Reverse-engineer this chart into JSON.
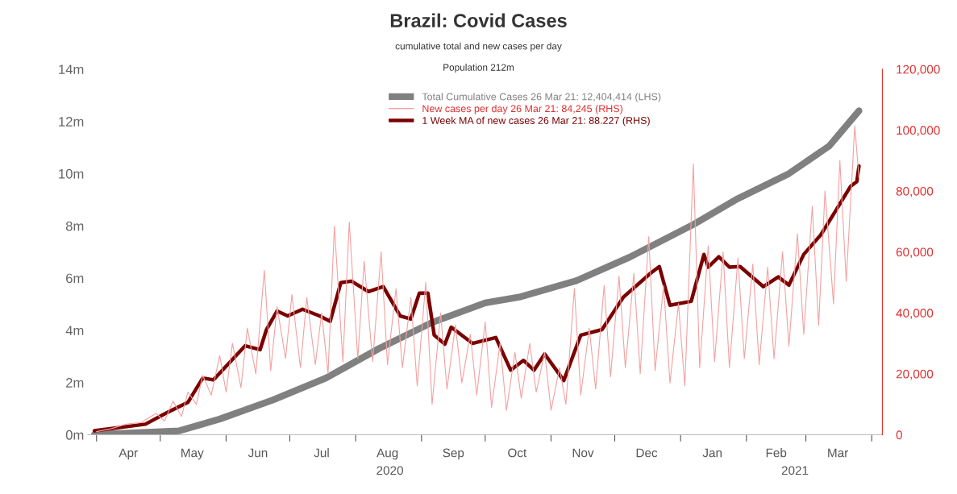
{
  "chart_data": {
    "type": "line",
    "title": "Brazil: Covid Cases",
    "subtitle": "cumulative total and new cases per day",
    "annotations": [
      "Population 212m",
      "2020",
      "2021"
    ],
    "xlim": [
      "2020-03-28",
      "2021-04-06"
    ],
    "xticks": [
      {
        "value": "2020-04-01",
        "label": null
      },
      {
        "value": "2020-04-16",
        "label": "Apr"
      },
      {
        "value": "2020-05-01",
        "label": null
      },
      {
        "value": "2020-05-16",
        "label": "May"
      },
      {
        "value": "2020-06-01",
        "label": null
      },
      {
        "value": "2020-06-16",
        "label": "Jun"
      },
      {
        "value": "2020-07-01",
        "label": null
      },
      {
        "value": "2020-07-16",
        "label": "Jul"
      },
      {
        "value": "2020-08-01",
        "label": null
      },
      {
        "value": "2020-08-16",
        "label": "Aug"
      },
      {
        "value": "2020-09-01",
        "label": null
      },
      {
        "value": "2020-09-16",
        "label": "Sep"
      },
      {
        "value": "2020-10-01",
        "label": null
      },
      {
        "value": "2020-10-16",
        "label": "Oct"
      },
      {
        "value": "2020-11-01",
        "label": null
      },
      {
        "value": "2020-11-16",
        "label": "Nov"
      },
      {
        "value": "2020-12-01",
        "label": null
      },
      {
        "value": "2020-12-16",
        "label": "Dec"
      },
      {
        "value": "2021-01-01",
        "label": null
      },
      {
        "value": "2021-01-16",
        "label": "Jan"
      },
      {
        "value": "2021-02-01",
        "label": null
      },
      {
        "value": "2021-02-15",
        "label": "Feb"
      },
      {
        "value": "2021-03-01",
        "label": null
      },
      {
        "value": "2021-03-16",
        "label": "Mar"
      },
      {
        "value": "2021-04-01",
        "label": null
      }
    ],
    "ylim": [
      0,
      14000000
    ],
    "yticks": [
      {
        "value": 0,
        "label": "0m"
      },
      {
        "value": 2000000,
        "label": "2m"
      },
      {
        "value": 4000000,
        "label": "4m"
      },
      {
        "value": 6000000,
        "label": "6m"
      },
      {
        "value": 8000000,
        "label": "8m"
      },
      {
        "value": 10000000,
        "label": "10m"
      },
      {
        "value": 12000000,
        "label": "12m"
      },
      {
        "value": 14000000,
        "label": "14m"
      }
    ],
    "y2lim": [
      0,
      120000
    ],
    "y2ticks": [
      0,
      {
        "value": 20000,
        "label": "20,000"
      },
      {
        "value": 40000,
        "label": "40,000"
      },
      {
        "value": 60000,
        "label": "60,000"
      },
      {
        "value": 80000,
        "label": "80,000"
      },
      {
        "value": 100000,
        "label": "100,000"
      },
      {
        "value": 120000,
        "label": "120,000"
      }
    ],
    "grid": false,
    "legend": "top",
    "marker": "none",
    "line_style": "solid",
    "series": [
      {
        "name": "Total Cumulative Cases 26 Mar 21: 12,404,414 (LHS)",
        "color": "#808080",
        "x": [
          "2020-03-31",
          "2020-05-10",
          "2020-05-29",
          "2020-06-23",
          "2020-07-18",
          "2020-08-12",
          "2020-09-06",
          "2020-10-01",
          "2020-10-17",
          "2020-11-13",
          "2020-12-08",
          "2021-01-07",
          "2021-01-27",
          "2021-02-21",
          "2021-03-12",
          "2021-03-26"
        ],
        "values": [
          6000,
          150000,
          600000,
          1330000,
          2170000,
          3300000,
          4300000,
          5050000,
          5270000,
          5900000,
          6800000,
          8050000,
          9000000,
          10000000,
          11060000,
          12404414
        ]
      },
      {
        "name": "New cases per day 26 Mar 21: 84,245 (RHS)",
        "color": "#f4a0a0",
        "axis": "y2",
        "x": [
          "2020-04-01",
          "2020-04-08",
          "2020-04-15",
          "2020-04-22",
          "2020-04-29",
          "2020-05-03",
          "2020-05-07",
          "2020-05-11",
          "2020-05-14",
          "2020-05-18",
          "2020-05-21",
          "2020-05-25",
          "2020-05-29",
          "2020-06-01",
          "2020-06-04",
          "2020-06-08",
          "2020-06-11",
          "2020-06-15",
          "2020-06-19",
          "2020-06-22",
          "2020-06-25",
          "2020-06-29",
          "2020-07-02",
          "2020-07-06",
          "2020-07-09",
          "2020-07-13",
          "2020-07-16",
          "2020-07-19",
          "2020-07-22",
          "2020-07-26",
          "2020-07-29",
          "2020-08-02",
          "2020-08-05",
          "2020-08-09",
          "2020-08-13",
          "2020-08-16",
          "2020-08-20",
          "2020-08-23",
          "2020-08-27",
          "2020-08-30",
          "2020-09-03",
          "2020-09-06",
          "2020-09-10",
          "2020-09-13",
          "2020-09-17",
          "2020-09-20",
          "2020-09-24",
          "2020-09-27",
          "2020-10-01",
          "2020-10-04",
          "2020-10-08",
          "2020-10-11",
          "2020-10-15",
          "2020-10-18",
          "2020-10-22",
          "2020-10-25",
          "2020-10-29",
          "2020-11-01",
          "2020-11-05",
          "2020-11-08",
          "2020-11-12",
          "2020-11-15",
          "2020-11-19",
          "2020-11-22",
          "2020-11-26",
          "2020-11-29",
          "2020-12-03",
          "2020-12-06",
          "2020-12-10",
          "2020-12-13",
          "2020-12-17",
          "2020-12-20",
          "2020-12-24",
          "2020-12-27",
          "2020-12-31",
          "2021-01-03",
          "2021-01-07",
          "2021-01-10",
          "2021-01-14",
          "2021-01-17",
          "2021-01-21",
          "2021-01-24",
          "2021-01-28",
          "2021-01-31",
          "2021-02-04",
          "2021-02-07",
          "2021-02-11",
          "2021-02-14",
          "2021-02-18",
          "2021-02-21",
          "2021-02-25",
          "2021-02-28",
          "2021-03-04",
          "2021-03-07",
          "2021-03-10",
          "2021-03-14",
          "2021-03-17",
          "2021-03-20",
          "2021-03-24",
          "2021-03-26"
        ],
        "values": [
          1000,
          2000,
          3500,
          4000,
          7000,
          4500,
          11000,
          6000,
          14000,
          10000,
          19500,
          13000,
          26000,
          14000,
          30000,
          15500,
          35000,
          20000,
          54000,
          21000,
          42000,
          25000,
          46000,
          22000,
          45000,
          23000,
          40000,
          20000,
          68500,
          24000,
          69800,
          25000,
          57000,
          24000,
          60000,
          23000,
          48000,
          22000,
          45000,
          16000,
          50000,
          10000,
          40000,
          15000,
          36000,
          17000,
          33000,
          13000,
          37000,
          9000,
          30000,
          8000,
          27000,
          12000,
          30000,
          14000,
          27000,
          8000,
          22000,
          10000,
          48000,
          13000,
          35000,
          15000,
          49000,
          19000,
          52000,
          22000,
          53000,
          20000,
          65000,
          21000,
          49000,
          17000,
          43000,
          16000,
          89000,
          22000,
          62000,
          24000,
          60000,
          22000,
          58000,
          25000,
          56000,
          23000,
          55000,
          25000,
          60000,
          29000,
          66000,
          33000,
          75000,
          36000,
          80000,
          43000,
          90000,
          50400,
          101400,
          84245
        ]
      },
      {
        "name": "1 Week MA of new cases 26 Mar 21: 88.227 (RHS)",
        "color": "#7a0000",
        "axis": "y2",
        "x": [
          "2020-03-31",
          "2020-04-24",
          "2020-05-04",
          "2020-05-14",
          "2020-05-21",
          "2020-05-26",
          "2020-06-10",
          "2020-06-17",
          "2020-06-20",
          "2020-06-25",
          "2020-06-30",
          "2020-07-07",
          "2020-07-15",
          "2020-07-20",
          "2020-07-25",
          "2020-07-30",
          "2020-08-07",
          "2020-08-14",
          "2020-08-22",
          "2020-08-27",
          "2020-08-31",
          "2020-09-04",
          "2020-09-07",
          "2020-09-12",
          "2020-09-15",
          "2020-09-25",
          "2020-10-06",
          "2020-10-13",
          "2020-10-19",
          "2020-10-24",
          "2020-10-29",
          "2020-11-07",
          "2020-11-15",
          "2020-11-25",
          "2020-12-05",
          "2020-12-18",
          "2020-12-22",
          "2020-12-27",
          "2021-01-06",
          "2021-01-12",
          "2021-01-14",
          "2021-01-19",
          "2021-01-24",
          "2021-01-29",
          "2021-02-09",
          "2021-02-16",
          "2021-02-21",
          "2021-02-28",
          "2021-03-08",
          "2021-03-15",
          "2021-03-22",
          "2021-03-25",
          "2021-03-26"
        ],
        "values": [
          1300,
          3450,
          7200,
          10600,
          18600,
          18000,
          29200,
          27900,
          34500,
          40600,
          39000,
          41200,
          39000,
          37200,
          49900,
          50400,
          47000,
          48600,
          39000,
          38000,
          46500,
          46500,
          32700,
          29700,
          35300,
          30000,
          31900,
          21200,
          24400,
          21200,
          26500,
          17800,
          32700,
          34500,
          45100,
          53100,
          55200,
          42500,
          43800,
          59200,
          55000,
          58400,
          55000,
          55200,
          48600,
          51800,
          49100,
          59200,
          65600,
          73500,
          81500,
          83100,
          88227
        ]
      }
    ]
  }
}
